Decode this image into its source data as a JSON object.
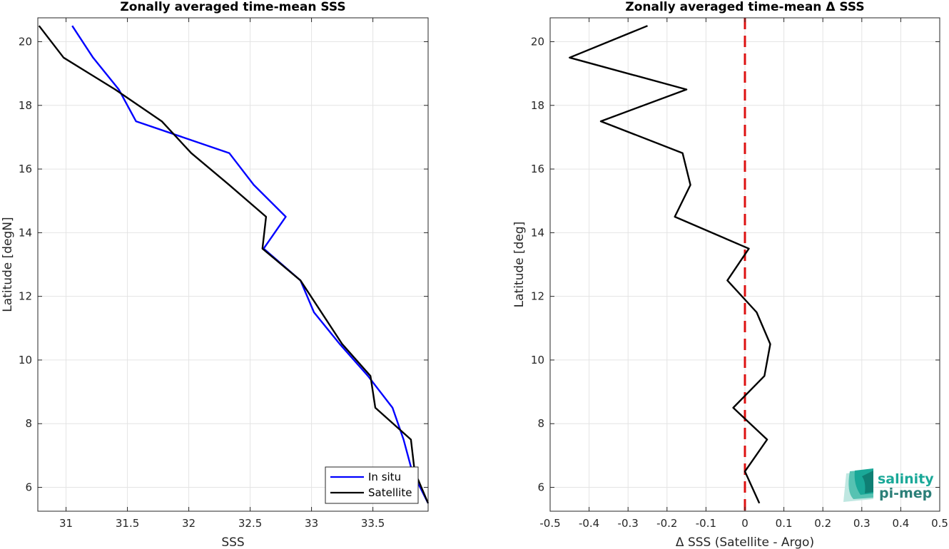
{
  "chart_data": [
    {
      "type": "line",
      "title": "Zonally averaged time-mean SSS",
      "xlabel": "SSS",
      "ylabel": "Latitude [degN]",
      "xlim": [
        30.77,
        33.95
      ],
      "ylim": [
        5.25,
        20.75
      ],
      "xticks": [
        31,
        31.5,
        32,
        32.5,
        33,
        33.5
      ],
      "xtick_labels": [
        "31",
        "31.5",
        "32",
        "32.5",
        "33",
        "33.5"
      ],
      "yticks": [
        6,
        8,
        10,
        12,
        14,
        16,
        18,
        20
      ],
      "ytick_labels": [
        "6",
        "8",
        "10",
        "12",
        "14",
        "16",
        "18",
        "20"
      ],
      "grid": true,
      "legend": "bottom-right",
      "series": [
        {
          "name": "In situ",
          "color": "#0000ff",
          "x": [
            31.05,
            31.22,
            31.43,
            31.57,
            32.33,
            32.53,
            32.79,
            32.61,
            32.91,
            33.02,
            33.23,
            33.46,
            33.66,
            33.75,
            33.82,
            33.95
          ],
          "y": [
            20.5,
            19.5,
            18.5,
            17.5,
            16.5,
            15.5,
            14.5,
            13.5,
            12.5,
            11.5,
            10.5,
            9.5,
            8.5,
            7.5,
            6.5,
            5.5
          ]
        },
        {
          "name": "Satellite",
          "color": "#000000",
          "x": [
            30.78,
            30.98,
            31.4,
            31.78,
            32.02,
            32.33,
            32.63,
            32.6,
            32.91,
            33.25,
            33.48,
            33.52,
            33.81,
            33.84,
            33.95
          ],
          "y": [
            20.5,
            19.5,
            18.5,
            17.5,
            16.5,
            15.5,
            14.5,
            13.5,
            12.5,
            10.5,
            9.5,
            8.5,
            7.5,
            6.5,
            5.5
          ]
        }
      ]
    },
    {
      "type": "line",
      "title": "Zonally averaged time-mean Δ SSS",
      "xlabel": "Δ SSS (Satellite - Argo)",
      "ylabel": "Latitude [deg]",
      "xlim": [
        -0.5,
        0.5
      ],
      "ylim": [
        5.25,
        20.75
      ],
      "xticks": [
        -0.5,
        -0.4,
        -0.3,
        -0.2,
        -0.1,
        0,
        0.1,
        0.2,
        0.3,
        0.4,
        0.5
      ],
      "xtick_labels": [
        "-0.5",
        "-0.4",
        "-0.3",
        "-0.2",
        "-0.1",
        "0",
        "0.1",
        "0.2",
        "0.3",
        "0.4",
        "0.5"
      ],
      "yticks": [
        6,
        8,
        10,
        12,
        14,
        16,
        18,
        20
      ],
      "ytick_labels": [
        "6",
        "8",
        "10",
        "12",
        "14",
        "16",
        "18",
        "20"
      ],
      "grid": true,
      "reference_line": {
        "x": 0,
        "color": "#dd1111",
        "style": "dashed"
      },
      "series": [
        {
          "color": "#000000",
          "x": [
            -0.25,
            -0.45,
            -0.15,
            -0.37,
            -0.16,
            -0.14,
            -0.18,
            0.01,
            -0.045,
            0.03,
            0.065,
            0.05,
            -0.03,
            0.057,
            0.0,
            0.037
          ],
          "y": [
            20.5,
            19.5,
            18.5,
            17.5,
            16.5,
            15.5,
            14.5,
            13.5,
            12.5,
            11.5,
            10.5,
            9.5,
            8.5,
            7.5,
            6.5,
            5.5
          ]
        }
      ]
    }
  ],
  "legend": {
    "items": [
      "In situ",
      "Satellite"
    ]
  },
  "logo": {
    "line1": "salinity",
    "line2": "pi-mep",
    "color": "#1aa898"
  }
}
